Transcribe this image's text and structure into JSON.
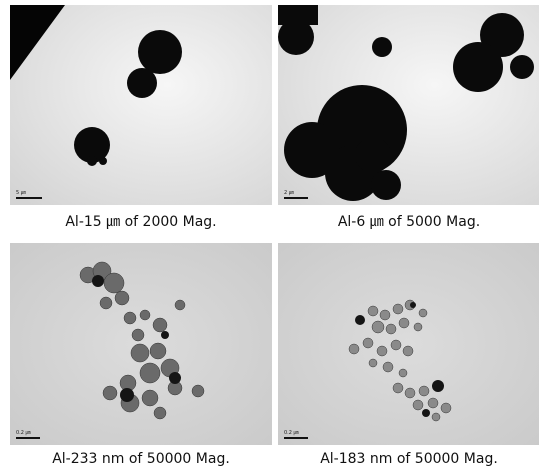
{
  "panels": [
    {
      "caption": "Al-15 ㎛ of 2000 Mag.",
      "scale": "5 ㎛"
    },
    {
      "caption": "Al-6 ㎛ of 5000 Mag.",
      "scale": "2 ㎛"
    },
    {
      "caption": "Al-233 nm of 50000 Mag.",
      "scale": "0.2 ㎛"
    },
    {
      "caption": "Al-183 nm of 50000 Mag.",
      "scale": "0.2 ㎛"
    }
  ]
}
